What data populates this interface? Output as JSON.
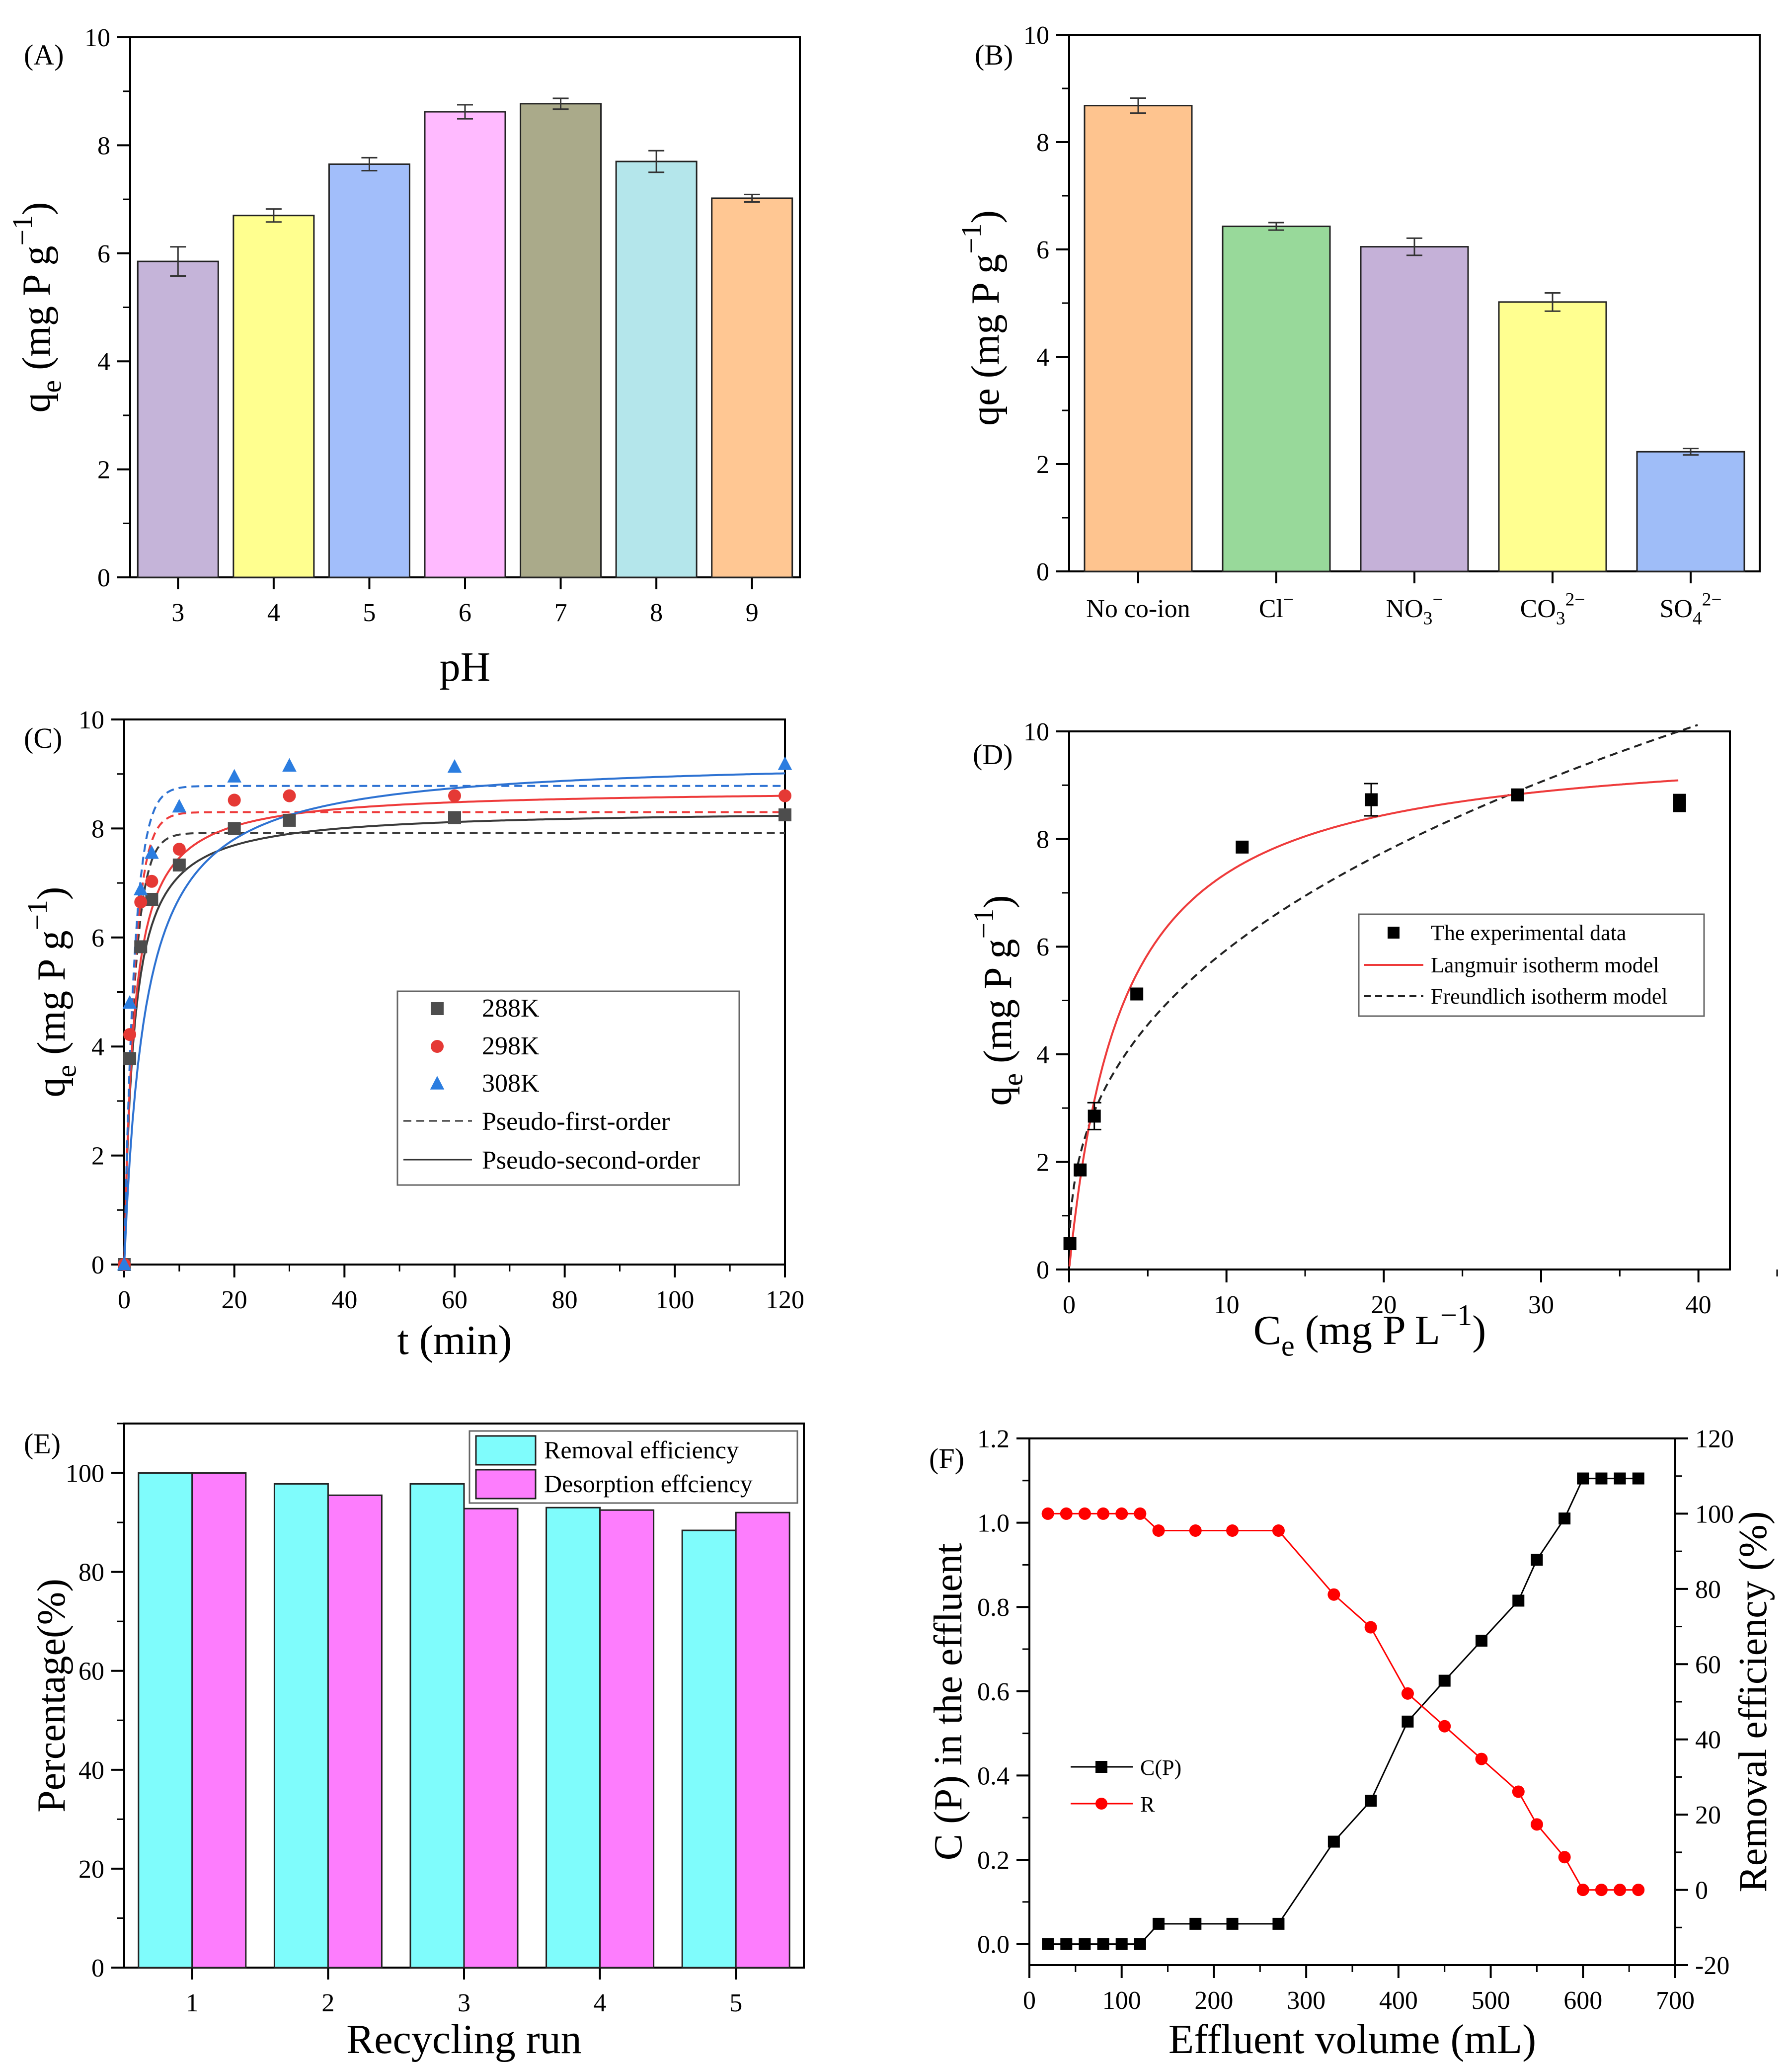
{
  "colors": {
    "axis": "#000000",
    "fit_288": "#3a3a3a",
    "fit_298": "#ee3b3b",
    "fit_308": "#2d72d2",
    "pt_288": "#4d4d4d",
    "pt_298": "#e53935",
    "pt_308": "#2b7de0",
    "removal": "#7ffcfc",
    "desorption": "#fd7dfd",
    "cp_line": "#000000",
    "r_line": "#ff0000"
  },
  "chart_data": [
    {
      "panel": "A",
      "panel_label": "(A)",
      "type": "bar",
      "xlabel": "pH",
      "ylabel_main": "q",
      "ylabel_sub": "e",
      "ylabel_rest": " (mg P g",
      "ylabel_sup": "−1",
      "ylabel_end": ")",
      "ylim": [
        0,
        10
      ],
      "yticks": [
        "0",
        "2",
        "4",
        "6",
        "8",
        "10"
      ],
      "categories": [
        "3",
        "4",
        "5",
        "6",
        "7",
        "8",
        "9"
      ],
      "values": [
        5.85,
        6.7,
        7.65,
        8.62,
        8.77,
        7.7,
        7.02
      ],
      "errors": [
        0.27,
        0.12,
        0.12,
        0.13,
        0.1,
        0.2,
        0.07
      ],
      "colors": [
        "#c5b4d9",
        "#ffff8f",
        "#a2befa",
        "#ffbaff",
        "#aaaa8a",
        "#b4e6eb",
        "#ffc793"
      ]
    },
    {
      "panel": "B",
      "panel_label": "(B)",
      "type": "bar",
      "xlabel": "",
      "ylabel_main": "qe (mg P g",
      "ylabel_sup": "−1",
      "ylabel_end": ")",
      "ylim": [
        0,
        10
      ],
      "yticks": [
        "0",
        "2",
        "4",
        "6",
        "8",
        "10"
      ],
      "categories": [
        {
          "base": "No co-ion",
          "sub": "",
          "sup": ""
        },
        {
          "base": "Cl",
          "sub": "",
          "sup": "−"
        },
        {
          "base": "NO",
          "sub": "3",
          "sup": "−"
        },
        {
          "base": "CO",
          "sub": "3",
          "sup": "2−"
        },
        {
          "base": "SO",
          "sub": "4",
          "sup": "2−"
        }
      ],
      "values": [
        8.68,
        6.43,
        6.05,
        5.02,
        2.23
      ],
      "errors": [
        0.14,
        0.07,
        0.16,
        0.17,
        0.06
      ],
      "colors": [
        "#fec48f",
        "#98d99a",
        "#c5b1d8",
        "#ffff90",
        "#9fbdf8"
      ]
    },
    {
      "panel": "C",
      "panel_label": "(C)",
      "type": "scatter",
      "xlabel": "t (min)",
      "ylabel_main": "q",
      "ylabel_sub": "e",
      "ylabel_rest": " (mg P g",
      "ylabel_sup": "−1",
      "ylabel_end": ")",
      "xlim": [
        0,
        120
      ],
      "ylim": [
        0,
        10
      ],
      "xticks": [
        "0",
        "20",
        "40",
        "60",
        "80",
        "100",
        "120"
      ],
      "yticks": [
        "0",
        "2",
        "4",
        "6",
        "8",
        "10"
      ],
      "series": [
        {
          "name": "288K",
          "marker": "square",
          "x": [
            0,
            1,
            3,
            5,
            10,
            20,
            30,
            60,
            120
          ],
          "y": [
            0,
            3.78,
            5.83,
            6.7,
            7.33,
            8.0,
            8.15,
            8.2,
            8.25
          ],
          "pfo": {
            "qe": 7.92,
            "k": 0.55
          },
          "pso": {
            "qe": 8.35,
            "k": 0.07
          }
        },
        {
          "name": "298K",
          "marker": "circle",
          "x": [
            0,
            1,
            3,
            5,
            10,
            20,
            30,
            60,
            120
          ],
          "y": [
            0,
            4.22,
            6.65,
            7.03,
            7.62,
            8.52,
            8.6,
            8.6,
            8.6
          ],
          "pfo": {
            "qe": 8.3,
            "k": 0.55
          },
          "pso": {
            "qe": 8.72,
            "k": 0.068
          }
        },
        {
          "name": "308K",
          "marker": "triangle",
          "x": [
            0,
            1,
            3,
            5,
            10,
            20,
            30,
            60,
            120
          ],
          "y": [
            0,
            4.8,
            6.88,
            7.55,
            8.4,
            8.95,
            9.15,
            9.13,
            9.18
          ],
          "pfo": {
            "qe": 8.78,
            "k": 0.55
          },
          "pso": {
            "qe": 9.3,
            "k": 0.028
          }
        }
      ],
      "legend": [
        "288K",
        "298K",
        "308K",
        "Pseudo-first-order",
        "Pseudo-second-order"
      ],
      "legend_position": "center"
    },
    {
      "panel": "D",
      "panel_label": "(D)",
      "type": "scatter",
      "xlabel_main": "C",
      "xlabel_sub": "e",
      "xlabel_rest": " (mg P L",
      "xlabel_sup": "−1",
      "xlabel_end": ")",
      "ylabel_main": "q",
      "ylabel_sub": "e",
      "ylabel_rest": " (mg P g",
      "ylabel_sup": "−1",
      "ylabel_end": ")",
      "xlim": [
        0,
        42
      ],
      "ylim": [
        0,
        10
      ],
      "xticks": [
        "0",
        "10",
        "20",
        "30",
        "40"
      ],
      "yticks": [
        "0",
        "2",
        "4",
        "6",
        "8",
        "10"
      ],
      "points": {
        "x": [
          0.05,
          0.7,
          1.6,
          4.3,
          11.0,
          19.2,
          28.5,
          38.8,
          38.8
        ],
        "y": [
          0.48,
          1.85,
          2.85,
          5.12,
          7.85,
          8.73,
          8.82,
          8.62,
          8.72
        ],
        "err": [
          0,
          0,
          0.25,
          0,
          0,
          0.3,
          0,
          0,
          0
        ]
      },
      "langmuir": {
        "qm": 9.9,
        "kl": 0.29
      },
      "freundlich": {
        "kf": 2.45,
        "n": 2.6
      },
      "legend": [
        "The experimental data",
        "Langmuir isotherm model",
        "Freundlich isotherm model"
      ],
      "legend_position": "center-right"
    },
    {
      "panel": "E",
      "panel_label": "(E)",
      "type": "bar",
      "xlabel": "Recycling run",
      "ylabel": "Percentage(%)",
      "ylim": [
        0,
        110
      ],
      "yticks": [
        "0",
        "20",
        "40",
        "60",
        "80",
        "100"
      ],
      "categories": [
        "1",
        "2",
        "3",
        "4",
        "5"
      ],
      "series": [
        {
          "name": "Removal efficiency",
          "values": [
            100,
            97.8,
            97.8,
            93.0,
            88.4
          ]
        },
        {
          "name": "Desorption effciency",
          "values": [
            100,
            95.5,
            92.8,
            92.5,
            92.0
          ]
        }
      ],
      "legend_position": "top-right"
    },
    {
      "panel": "F",
      "panel_label": "(F)",
      "type": "line",
      "xlabel": "Effluent volume (mL)",
      "ylabel_left": "C (P) in the effluent",
      "ylabel_right": "Removal efficiency (%)",
      "xlim": [
        0,
        700
      ],
      "ylim_left": [
        -0.05,
        1.2
      ],
      "ylim_right": [
        -20,
        120
      ],
      "xticks": [
        "0",
        "100",
        "200",
        "300",
        "400",
        "500",
        "600",
        "700"
      ],
      "yticks_left": [
        "0.0",
        "0.2",
        "0.4",
        "0.6",
        "0.8",
        "1.0",
        "1.2"
      ],
      "yticks_right": [
        "-20",
        "0",
        "20",
        "40",
        "60",
        "80",
        "100",
        "120"
      ],
      "x": [
        20,
        40,
        60,
        80,
        100,
        120,
        140,
        180,
        220,
        270,
        330,
        370,
        410,
        450,
        490,
        530,
        550,
        580,
        600,
        620,
        640,
        660
      ],
      "series": [
        {
          "name": "C(P)",
          "axis": "left",
          "marker": "square",
          "values": [
            0,
            0,
            0,
            0,
            0,
            0,
            0.048,
            0.048,
            0.048,
            0.048,
            0.243,
            0.34,
            0.528,
            0.625,
            0.72,
            0.815,
            0.912,
            1.01,
            1.105,
            1.105,
            1.105,
            1.105
          ]
        },
        {
          "name": "R",
          "axis": "right",
          "marker": "circle",
          "values": [
            100,
            100,
            100,
            100,
            100,
            100,
            95.5,
            95.5,
            95.5,
            95.5,
            78.5,
            69.8,
            52.2,
            43.5,
            34.8,
            26.1,
            17.4,
            8.7,
            0,
            0,
            0,
            0
          ]
        }
      ],
      "legend_position": "center-left"
    }
  ]
}
